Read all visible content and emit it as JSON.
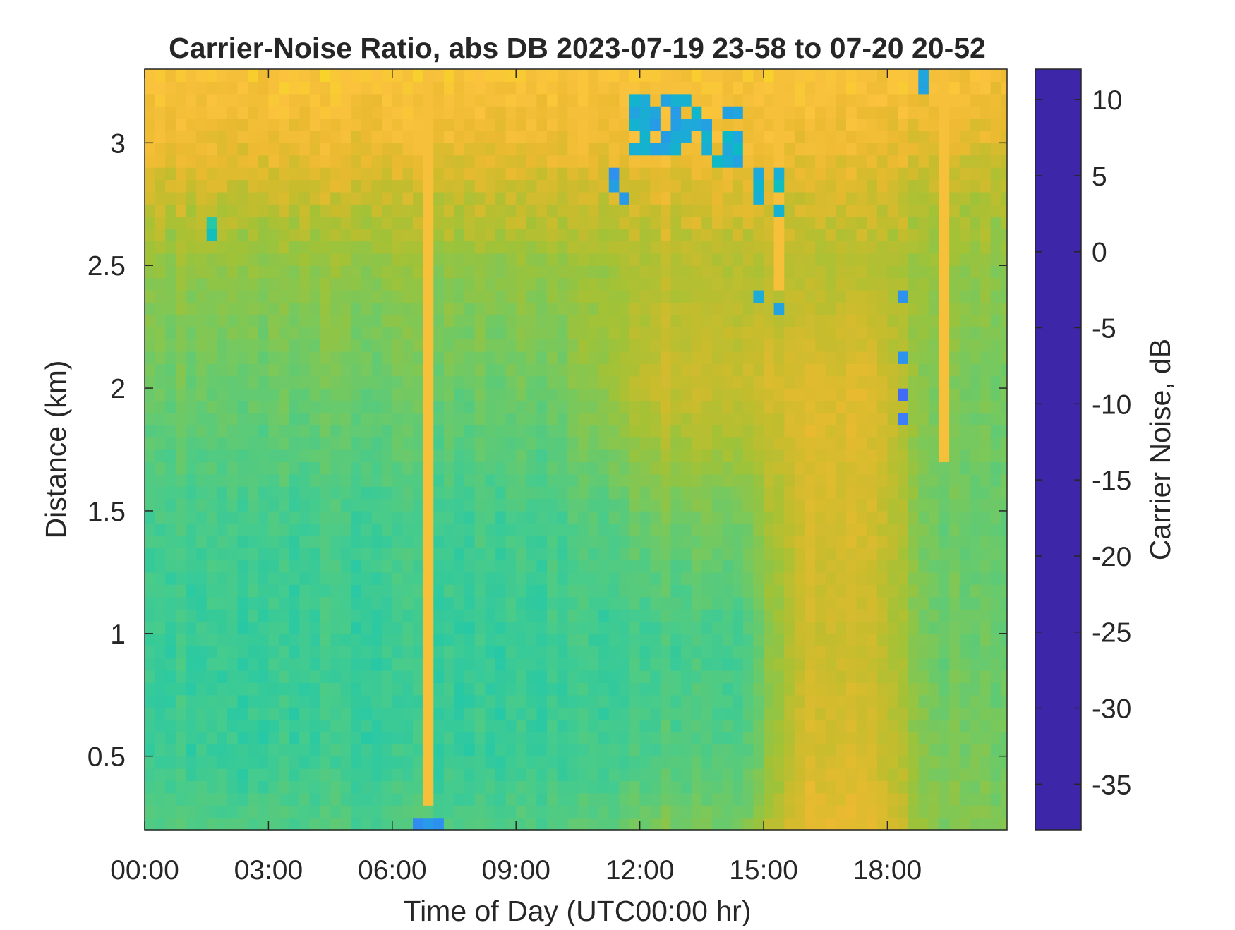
{
  "chart_data": {
    "type": "heatmap",
    "title": "Carrier-Noise Ratio, abs DB 2023-07-19 23-58 to 07-20 20-52",
    "xlabel": "Time of Day (UTC00:00 hr)",
    "ylabel": "Distance (km)",
    "colorbar_label": "Carrier Noise, dB",
    "xlim": [
      0,
      20.9
    ],
    "ylim": [
      0.2,
      3.3
    ],
    "clim": [
      -38,
      12
    ],
    "x_ticks": [
      0,
      3,
      6,
      9,
      12,
      15,
      18
    ],
    "x_tick_labels": [
      "00:00",
      "03:00",
      "06:00",
      "09:00",
      "12:00",
      "15:00",
      "18:00"
    ],
    "y_ticks": [
      0.5,
      1,
      1.5,
      2,
      2.5,
      3
    ],
    "y_tick_labels": [
      "0.5",
      "1",
      "1.5",
      "2",
      "2.5",
      "3"
    ],
    "colorbar_ticks": [
      10,
      5,
      0,
      -5,
      -10,
      -15,
      -20,
      -25,
      -30,
      -35
    ],
    "colorbar_tick_labels": [
      "10",
      "5",
      "0",
      "-5",
      "-10",
      "-15",
      "-20",
      "-25",
      "-30",
      "-35"
    ],
    "colormap": [
      "#3e26a8",
      "#4744e8",
      "#3e7bfa",
      "#2897eb",
      "#1fa9da",
      "#0cb9c6",
      "#1ac7b0",
      "#47cb8c",
      "#73c961",
      "#a1c237",
      "#c8bc2d",
      "#ebba30",
      "#fac23d",
      "#f7d923",
      "#f9fb15"
    ],
    "grid": false,
    "cell_grid": {
      "x_step_hours": 0.25,
      "y_step_km": 0.05
    },
    "background_profile": {
      "description_units": "dB vs distance (km) at reference times",
      "distance_km": [
        0.2,
        0.5,
        1.0,
        1.5,
        2.0,
        2.5,
        2.8,
        3.0,
        3.3
      ],
      "early_hours_0_to_10_dB": [
        -14,
        -12,
        -12,
        -13,
        -16,
        -19,
        -24,
        -28,
        -31
      ],
      "midday_12_to_15_dB": [
        -17,
        -14,
        -13,
        -17,
        -24,
        -22,
        -26,
        -29,
        -31
      ],
      "afternoon_15_to_18_dB": [
        -27,
        -25,
        -24,
        -25,
        -26,
        -22,
        -25,
        -28,
        -31
      ],
      "late_19_to_21_dB": [
        -18,
        -17,
        -16,
        -16,
        -17,
        -19,
        -22,
        -26,
        -30
      ]
    },
    "features": [
      {
        "name": "vertical streak",
        "x_hours": 6.9,
        "y_range_km": [
          0.3,
          3.3
        ],
        "value_dB": -30
      },
      {
        "name": "vertical streak",
        "x_hours": 15.45,
        "y_range_km": [
          2.4,
          3.3
        ],
        "value_dB": -30
      },
      {
        "name": "vertical streak",
        "x_hours": 19.35,
        "y_range_km": [
          1.7,
          3.3
        ],
        "value_dB": -30
      },
      {
        "name": "cloud patch",
        "x_range_hours": [
          11.3,
          11.7
        ],
        "y_range_km": [
          2.7,
          2.9
        ],
        "value_dB": 2
      },
      {
        "name": "cloud patch",
        "x_range_hours": [
          11.8,
          13.2
        ],
        "y_range_km": [
          2.95,
          3.2
        ],
        "value_dB": -2
      },
      {
        "name": "cloud patch",
        "x_range_hours": [
          13.3,
          14.6
        ],
        "y_range_km": [
          2.9,
          3.15
        ],
        "value_dB": -3
      },
      {
        "name": "cloud patch",
        "x_range_hours": [
          14.7,
          15.5
        ],
        "y_range_km": [
          2.7,
          2.9
        ],
        "value_dB": -5
      },
      {
        "name": "cloud patch",
        "x_range_hours": [
          14.7,
          15.5
        ],
        "y_range_km": [
          2.3,
          2.4
        ],
        "value_dB": -4
      },
      {
        "name": "cloud patch",
        "x_range_hours": [
          18.3,
          18.6
        ],
        "y_range_km": [
          1.8,
          2.4
        ],
        "value_dB": 4
      },
      {
        "name": "cloud patch",
        "x_range_hours": [
          18.8,
          19.0
        ],
        "y_range_km": [
          3.15,
          3.3
        ],
        "value_dB": 0
      },
      {
        "name": "cloud patch",
        "x_range_hours": [
          6.6,
          7.3
        ],
        "y_range_km": [
          0.2,
          0.27
        ],
        "value_dB": 3
      },
      {
        "name": "cloud patch",
        "x_range_hours": [
          1.5,
          1.7
        ],
        "y_range_km": [
          2.6,
          2.7
        ],
        "value_dB": -8
      }
    ]
  }
}
